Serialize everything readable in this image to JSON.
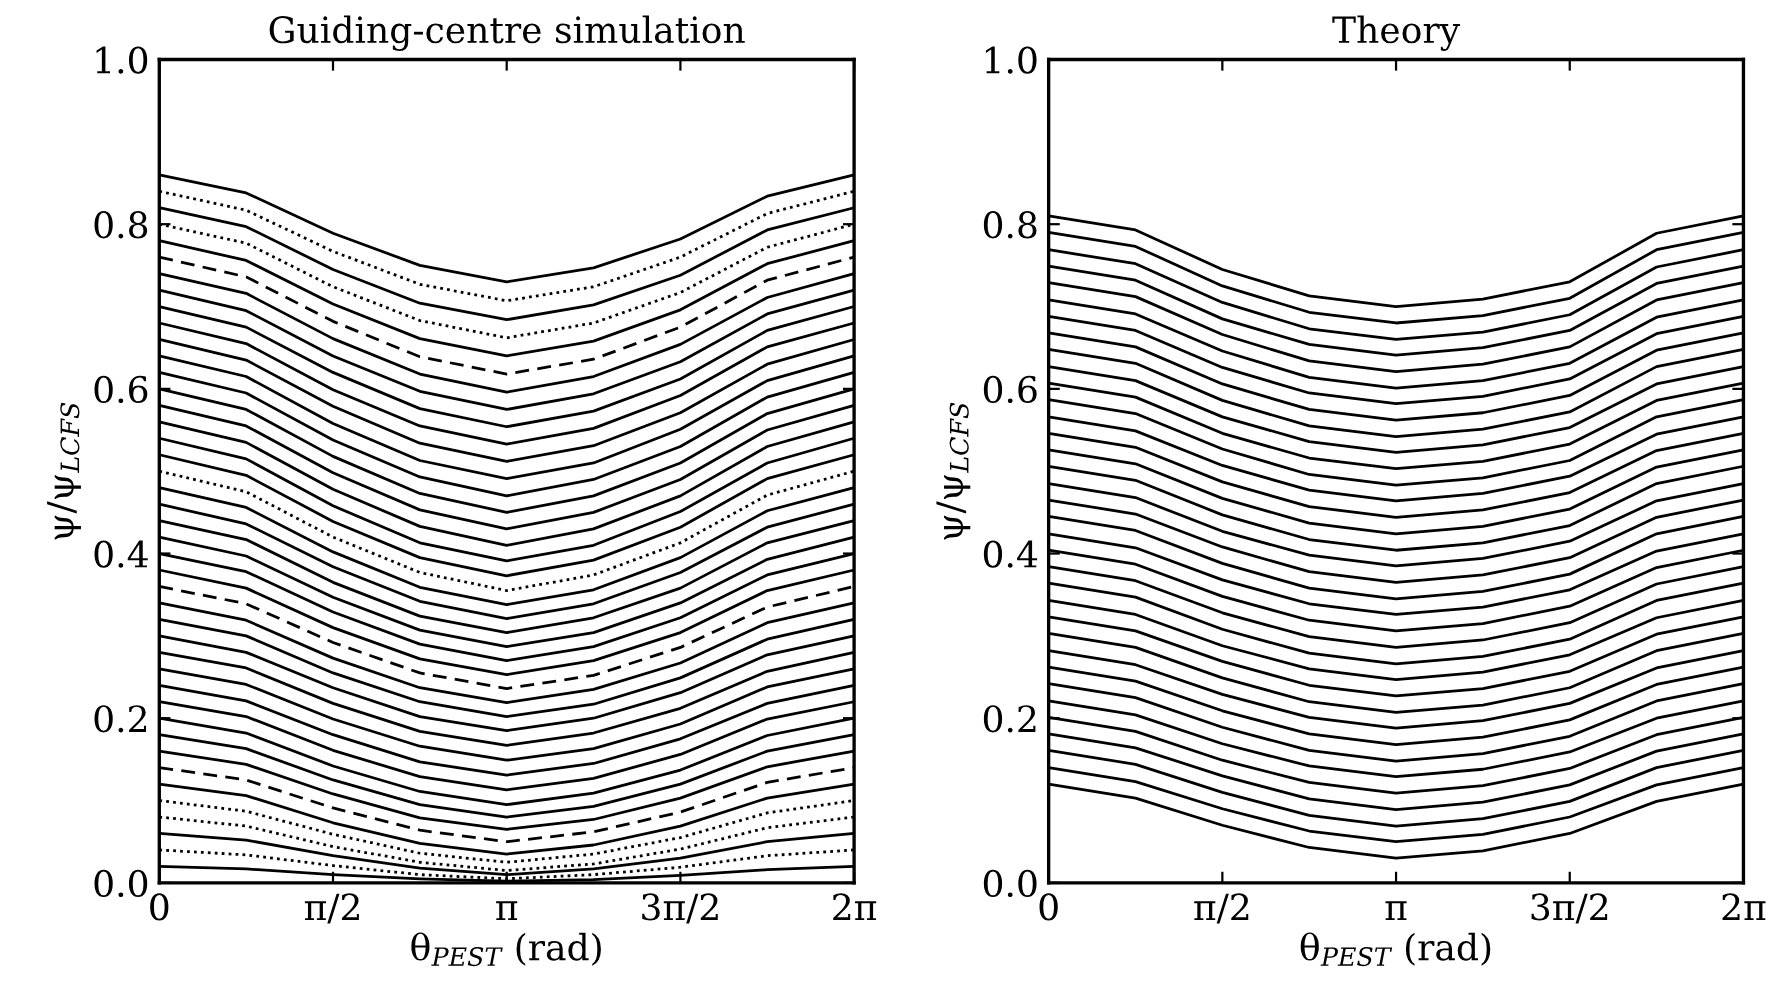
{
  "chart_data": [
    {
      "type": "line",
      "title": "Guiding-centre simulation",
      "xlabel": "θ$_{PEST}$ (rad)",
      "ylabel": "ψ/ψ$_{LCFS}$",
      "color": "#000000",
      "x": [
        0,
        0.7854,
        1.5708,
        2.3562,
        3.1416,
        3.927,
        4.7124,
        5.4978,
        6.2832
      ],
      "xlim": [
        0,
        6.2832
      ],
      "ylim": [
        0,
        1
      ],
      "xticks": [
        0,
        {
          "value": 1.5708,
          "label": "π/2"
        },
        {
          "value": 3.1416,
          "label": "π"
        },
        {
          "value": 4.7124,
          "label": "3π/2"
        },
        {
          "value": 6.2832,
          "label": "2π"
        }
      ],
      "yticks": [
        {
          "value": 0,
          "label": "0.0"
        },
        {
          "value": 0.2,
          "label": "0.2"
        },
        {
          "value": 0.4,
          "label": "0.4"
        },
        {
          "value": 0.6,
          "label": "0.6"
        },
        {
          "value": 0.8,
          "label": "0.8"
        },
        {
          "value": 1,
          "label": "1.0"
        }
      ],
      "series": [
        {
          "values": [
            0.02,
            0.017,
            0.01,
            0.005,
            0.002,
            0.004,
            0.009,
            0.016,
            0.02
          ]
        },
        {
          "values": [
            0.04,
            0.034,
            0.021,
            0.01,
            0.005,
            0.01,
            0.019,
            0.033,
            0.04
          ],
          "line_style": "dotted"
        },
        {
          "values": [
            0.06,
            0.052,
            0.033,
            0.018,
            0.01,
            0.017,
            0.03,
            0.05,
            0.06
          ]
        },
        {
          "values": [
            0.08,
            0.069,
            0.044,
            0.025,
            0.015,
            0.023,
            0.041,
            0.067,
            0.08
          ],
          "line_style": "dotted"
        },
        {
          "values": [
            0.1,
            0.087,
            0.059,
            0.036,
            0.025,
            0.035,
            0.055,
            0.085,
            0.1
          ],
          "line_style": "dotted"
        },
        {
          "values": [
            0.12,
            0.106,
            0.073,
            0.048,
            0.035,
            0.046,
            0.069,
            0.103,
            0.12
          ]
        },
        {
          "values": [
            0.14,
            0.125,
            0.091,
            0.064,
            0.05,
            0.062,
            0.086,
            0.122,
            0.14
          ],
          "line_style": "dashed"
        },
        {
          "values": [
            0.16,
            0.144,
            0.108,
            0.079,
            0.065,
            0.077,
            0.103,
            0.141,
            0.16
          ]
        },
        {
          "values": [
            0.18,
            0.163,
            0.125,
            0.095,
            0.08,
            0.093,
            0.12,
            0.16,
            0.18
          ]
        },
        {
          "values": [
            0.2,
            0.182,
            0.142,
            0.111,
            0.095,
            0.109,
            0.137,
            0.179,
            0.2
          ]
        },
        {
          "values": [
            0.22,
            0.202,
            0.161,
            0.129,
            0.113,
            0.127,
            0.156,
            0.199,
            0.22
          ]
        },
        {
          "values": [
            0.24,
            0.221,
            0.18,
            0.147,
            0.131,
            0.145,
            0.175,
            0.218,
            0.24
          ]
        },
        {
          "values": [
            0.26,
            0.241,
            0.199,
            0.166,
            0.149,
            0.163,
            0.193,
            0.238,
            0.26
          ]
        },
        {
          "values": [
            0.28,
            0.261,
            0.218,
            0.184,
            0.167,
            0.182,
            0.212,
            0.257,
            0.28
          ]
        },
        {
          "values": [
            0.3,
            0.28,
            0.237,
            0.202,
            0.185,
            0.2,
            0.231,
            0.277,
            0.3
          ]
        },
        {
          "values": [
            0.32,
            0.3,
            0.255,
            0.22,
            0.202,
            0.217,
            0.249,
            0.296,
            0.32
          ]
        },
        {
          "values": [
            0.34,
            0.319,
            0.273,
            0.237,
            0.219,
            0.235,
            0.267,
            0.316,
            0.34
          ]
        },
        {
          "values": [
            0.36,
            0.339,
            0.292,
            0.255,
            0.236,
            0.252,
            0.286,
            0.335,
            0.36
          ],
          "line_style": "dashed"
        },
        {
          "values": [
            0.38,
            0.358,
            0.31,
            0.272,
            0.253,
            0.27,
            0.304,
            0.355,
            0.38
          ]
        },
        {
          "values": [
            0.4,
            0.378,
            0.329,
            0.29,
            0.27,
            0.287,
            0.322,
            0.374,
            0.4
          ]
        },
        {
          "values": [
            0.42,
            0.397,
            0.347,
            0.307,
            0.287,
            0.304,
            0.34,
            0.393,
            0.42
          ]
        },
        {
          "values": [
            0.44,
            0.417,
            0.365,
            0.324,
            0.304,
            0.322,
            0.358,
            0.413,
            0.44
          ]
        },
        {
          "values": [
            0.46,
            0.436,
            0.384,
            0.342,
            0.321,
            0.339,
            0.377,
            0.432,
            0.46
          ]
        },
        {
          "values": [
            0.48,
            0.456,
            0.402,
            0.359,
            0.338,
            0.356,
            0.395,
            0.452,
            0.48
          ]
        },
        {
          "values": [
            0.5,
            0.475,
            0.42,
            0.377,
            0.355,
            0.374,
            0.413,
            0.471,
            0.5
          ],
          "line_style": "dotted"
        },
        {
          "values": [
            0.52,
            0.495,
            0.439,
            0.395,
            0.373,
            0.392,
            0.432,
            0.491,
            0.52
          ]
        },
        {
          "values": [
            0.54,
            0.515,
            0.458,
            0.413,
            0.391,
            0.41,
            0.451,
            0.51,
            0.54
          ]
        },
        {
          "values": [
            0.56,
            0.535,
            0.478,
            0.433,
            0.41,
            0.43,
            0.47,
            0.53,
            0.56
          ]
        },
        {
          "values": [
            0.58,
            0.555,
            0.498,
            0.453,
            0.43,
            0.45,
            0.49,
            0.55,
            0.58
          ]
        },
        {
          "values": [
            0.6,
            0.575,
            0.518,
            0.473,
            0.45,
            0.47,
            0.51,
            0.57,
            0.6
          ]
        },
        {
          "values": [
            0.62,
            0.595,
            0.538,
            0.493,
            0.47,
            0.49,
            0.53,
            0.59,
            0.62
          ]
        },
        {
          "values": [
            0.64,
            0.615,
            0.558,
            0.513,
            0.491,
            0.51,
            0.551,
            0.61,
            0.64
          ]
        },
        {
          "values": [
            0.66,
            0.635,
            0.579,
            0.534,
            0.512,
            0.531,
            0.571,
            0.63,
            0.66
          ]
        },
        {
          "values": [
            0.68,
            0.655,
            0.599,
            0.555,
            0.533,
            0.552,
            0.592,
            0.651,
            0.68
          ]
        },
        {
          "values": [
            0.7,
            0.675,
            0.62,
            0.576,
            0.554,
            0.573,
            0.612,
            0.671,
            0.7
          ]
        },
        {
          "values": [
            0.72,
            0.695,
            0.64,
            0.597,
            0.575,
            0.594,
            0.633,
            0.691,
            0.72
          ]
        },
        {
          "values": [
            0.74,
            0.716,
            0.661,
            0.618,
            0.596,
            0.615,
            0.654,
            0.711,
            0.74
          ]
        },
        {
          "values": [
            0.76,
            0.736,
            0.682,
            0.639,
            0.618,
            0.636,
            0.675,
            0.732,
            0.76
          ],
          "line_style": "dashed"
        },
        {
          "values": [
            0.78,
            0.756,
            0.703,
            0.661,
            0.64,
            0.658,
            0.696,
            0.752,
            0.78
          ]
        },
        {
          "values": [
            0.8,
            0.777,
            0.724,
            0.683,
            0.662,
            0.68,
            0.717,
            0.772,
            0.8
          ],
          "line_style": "dotted"
        },
        {
          "values": [
            0.82,
            0.797,
            0.745,
            0.704,
            0.684,
            0.702,
            0.738,
            0.793,
            0.82
          ]
        },
        {
          "values": [
            0.84,
            0.817,
            0.767,
            0.727,
            0.707,
            0.724,
            0.76,
            0.813,
            0.84
          ],
          "line_style": "dotted"
        },
        {
          "values": [
            0.86,
            0.838,
            0.789,
            0.75,
            0.73,
            0.747,
            0.782,
            0.834,
            0.86
          ]
        }
      ]
    },
    {
      "type": "line",
      "title": "Theory",
      "xlabel": "θ$_{PEST}$ (rad)",
      "ylabel": "ψ/ψ$_{LCFS}$",
      "color": "#000000",
      "x": [
        0,
        0.7854,
        1.5708,
        2.3562,
        3.1416,
        3.927,
        4.7124,
        5.4978,
        6.2832
      ],
      "xlim": [
        0,
        6.2832
      ],
      "ylim": [
        0,
        1
      ],
      "xticks": [
        0,
        {
          "value": 1.5708,
          "label": "π/2"
        },
        {
          "value": 3.1416,
          "label": "π"
        },
        {
          "value": 4.7124,
          "label": "3π/2"
        },
        {
          "value": 6.2832,
          "label": "2π"
        }
      ],
      "yticks": [
        {
          "value": 0,
          "label": "0.0"
        },
        {
          "value": 0.2,
          "label": "0.2"
        },
        {
          "value": 0.4,
          "label": "0.4"
        },
        {
          "value": 0.6,
          "label": "0.6"
        },
        {
          "value": 0.8,
          "label": "0.8"
        },
        {
          "value": 1,
          "label": "1.0"
        }
      ],
      "series": [
        {
          "values": [
            0.12,
            0.103,
            0.07,
            0.043,
            0.03,
            0.039,
            0.06,
            0.099,
            0.12
          ]
        },
        {
          "values": [
            0.14,
            0.123,
            0.09,
            0.063,
            0.05,
            0.059,
            0.08,
            0.119,
            0.14
          ]
        },
        {
          "values": [
            0.161,
            0.144,
            0.11,
            0.082,
            0.069,
            0.078,
            0.099,
            0.14,
            0.161
          ]
        },
        {
          "values": [
            0.181,
            0.164,
            0.13,
            0.102,
            0.089,
            0.098,
            0.119,
            0.16,
            0.181
          ]
        },
        {
          "values": [
            0.201,
            0.184,
            0.149,
            0.122,
            0.109,
            0.118,
            0.139,
            0.18,
            0.201
          ]
        },
        {
          "values": [
            0.221,
            0.204,
            0.169,
            0.142,
            0.129,
            0.138,
            0.159,
            0.2,
            0.221
          ]
        },
        {
          "values": [
            0.242,
            0.225,
            0.189,
            0.161,
            0.148,
            0.157,
            0.178,
            0.221,
            0.242
          ]
        },
        {
          "values": [
            0.262,
            0.245,
            0.209,
            0.181,
            0.168,
            0.177,
            0.198,
            0.241,
            0.262
          ]
        },
        {
          "values": [
            0.282,
            0.265,
            0.229,
            0.201,
            0.188,
            0.197,
            0.218,
            0.261,
            0.282
          ]
        },
        {
          "values": [
            0.303,
            0.286,
            0.249,
            0.22,
            0.207,
            0.216,
            0.237,
            0.282,
            0.303
          ]
        },
        {
          "values": [
            0.323,
            0.306,
            0.269,
            0.24,
            0.227,
            0.236,
            0.257,
            0.302,
            0.323
          ]
        },
        {
          "values": [
            0.343,
            0.326,
            0.288,
            0.26,
            0.247,
            0.256,
            0.277,
            0.322,
            0.343
          ]
        },
        {
          "values": [
            0.364,
            0.347,
            0.308,
            0.279,
            0.266,
            0.275,
            0.296,
            0.343,
            0.364
          ]
        },
        {
          "values": [
            0.384,
            0.367,
            0.328,
            0.299,
            0.286,
            0.295,
            0.316,
            0.363,
            0.384
          ]
        },
        {
          "values": [
            0.404,
            0.387,
            0.348,
            0.319,
            0.306,
            0.315,
            0.336,
            0.383,
            0.404
          ]
        },
        {
          "values": [
            0.424,
            0.407,
            0.368,
            0.339,
            0.326,
            0.335,
            0.356,
            0.403,
            0.424
          ]
        },
        {
          "values": [
            0.445,
            0.428,
            0.388,
            0.358,
            0.345,
            0.354,
            0.375,
            0.424,
            0.445
          ]
        },
        {
          "values": [
            0.465,
            0.448,
            0.408,
            0.378,
            0.365,
            0.374,
            0.395,
            0.444,
            0.465
          ]
        },
        {
          "values": [
            0.485,
            0.468,
            0.427,
            0.398,
            0.385,
            0.394,
            0.415,
            0.464,
            0.485
          ]
        },
        {
          "values": [
            0.506,
            0.489,
            0.447,
            0.417,
            0.404,
            0.413,
            0.434,
            0.485,
            0.506
          ]
        },
        {
          "values": [
            0.526,
            0.509,
            0.467,
            0.437,
            0.424,
            0.433,
            0.454,
            0.505,
            0.526
          ]
        },
        {
          "values": [
            0.546,
            0.529,
            0.487,
            0.457,
            0.444,
            0.453,
            0.474,
            0.525,
            0.546
          ]
        },
        {
          "values": [
            0.566,
            0.549,
            0.507,
            0.477,
            0.464,
            0.473,
            0.494,
            0.545,
            0.566
          ]
        },
        {
          "values": [
            0.587,
            0.57,
            0.527,
            0.496,
            0.483,
            0.492,
            0.513,
            0.566,
            0.587
          ]
        },
        {
          "values": [
            0.607,
            0.59,
            0.546,
            0.516,
            0.503,
            0.512,
            0.533,
            0.586,
            0.607
          ]
        },
        {
          "values": [
            0.627,
            0.61,
            0.566,
            0.536,
            0.523,
            0.532,
            0.553,
            0.606,
            0.627
          ]
        },
        {
          "values": [
            0.648,
            0.631,
            0.586,
            0.555,
            0.542,
            0.551,
            0.572,
            0.627,
            0.648
          ]
        },
        {
          "values": [
            0.668,
            0.651,
            0.606,
            0.575,
            0.562,
            0.571,
            0.592,
            0.647,
            0.668
          ]
        },
        {
          "values": [
            0.688,
            0.671,
            0.626,
            0.595,
            0.582,
            0.591,
            0.612,
            0.667,
            0.688
          ]
        },
        {
          "values": [
            0.708,
            0.691,
            0.646,
            0.614,
            0.601,
            0.61,
            0.631,
            0.687,
            0.708
          ]
        },
        {
          "values": [
            0.729,
            0.712,
            0.666,
            0.634,
            0.621,
            0.63,
            0.651,
            0.708,
            0.729
          ]
        },
        {
          "values": [
            0.749,
            0.732,
            0.685,
            0.654,
            0.641,
            0.65,
            0.671,
            0.728,
            0.749
          ]
        },
        {
          "values": [
            0.769,
            0.752,
            0.705,
            0.673,
            0.66,
            0.669,
            0.69,
            0.748,
            0.769
          ]
        },
        {
          "values": [
            0.79,
            0.773,
            0.725,
            0.693,
            0.68,
            0.689,
            0.71,
            0.769,
            0.79
          ]
        },
        {
          "values": [
            0.81,
            0.793,
            0.745,
            0.713,
            0.7,
            0.709,
            0.73,
            0.789,
            0.81
          ]
        }
      ]
    }
  ]
}
